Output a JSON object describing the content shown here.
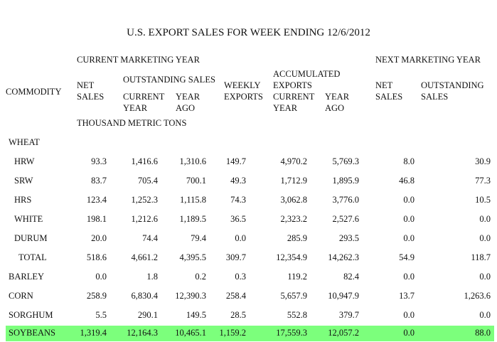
{
  "title": "U.S. EXPORT SALES FOR WEEK ENDING 12/6/2012",
  "headers": {
    "current_marketing_year": "CURRENT MARKETING YEAR",
    "next_marketing_year": "NEXT MARKETING YEAR",
    "commodity": "COMMODITY",
    "net_sales": [
      "NET",
      "SALES"
    ],
    "outstanding_sales": "OUTSTANDING SALES",
    "current_year": [
      "CURRENT",
      "YEAR"
    ],
    "year_ago": [
      "YEAR",
      "AGO"
    ],
    "weekly_exports": [
      "WEEKLY",
      "EXPORTS"
    ],
    "accumulated_exports": [
      "ACCUMULATED",
      "EXPORTS"
    ],
    "next_net_sales": [
      "NET",
      "SALES"
    ],
    "next_outstanding_sales": [
      "OUTSTANDING",
      "SALES"
    ],
    "units": "THOUSAND METRIC TONS"
  },
  "section_wheat": "WHEAT",
  "rows": [
    {
      "commodity": "HRW",
      "values": [
        "93.3",
        "1,416.6",
        "1,310.6",
        "149.7",
        "4,970.2",
        "5,769.3",
        "8.0",
        "30.9"
      ]
    },
    {
      "commodity": "SRW",
      "values": [
        "83.7",
        "705.4",
        "700.1",
        "49.3",
        "1,712.9",
        "1,895.9",
        "46.8",
        "77.3"
      ]
    },
    {
      "commodity": "HRS",
      "values": [
        "123.4",
        "1,252.3",
        "1,115.8",
        "74.3",
        "3,062.8",
        "3,776.0",
        "0.0",
        "10.5"
      ]
    },
    {
      "commodity": "WHITE",
      "values": [
        "198.1",
        "1,212.6",
        "1,189.5",
        "36.5",
        "2,323.2",
        "2,527.6",
        "0.0",
        "0.0"
      ]
    },
    {
      "commodity": "DURUM",
      "values": [
        "20.0",
        "74.4",
        "79.4",
        "0.0",
        "285.9",
        "293.5",
        "0.0",
        "0.0"
      ]
    },
    {
      "commodity": "TOTAL",
      "values": [
        "518.6",
        "4,661.2",
        "4,395.5",
        "309.7",
        "12,354.9",
        "14,262.3",
        "54.9",
        "118.7"
      ]
    },
    {
      "commodity": "BARLEY",
      "values": [
        "0.0",
        "1.8",
        "0.2",
        "0.3",
        "119.2",
        "82.4",
        "0.0",
        "0.0"
      ]
    },
    {
      "commodity": "CORN",
      "values": [
        "258.9",
        "6,830.4",
        "12,390.3",
        "258.4",
        "5,657.9",
        "10,947.9",
        "13.7",
        "1,263.6"
      ]
    },
    {
      "commodity": "SORGHUM",
      "values": [
        "5.5",
        "290.1",
        "149.5",
        "28.5",
        "552.8",
        "379.7",
        "0.0",
        "0.0"
      ]
    },
    {
      "commodity": "SOYBEANS",
      "values": [
        "1,319.4",
        "12,164.3",
        "10,465.1",
        "1,159.2",
        "17,559.3",
        "12,057.2",
        "0.0",
        "88.0"
      ],
      "highlight_color": "#7cff7c"
    }
  ]
}
